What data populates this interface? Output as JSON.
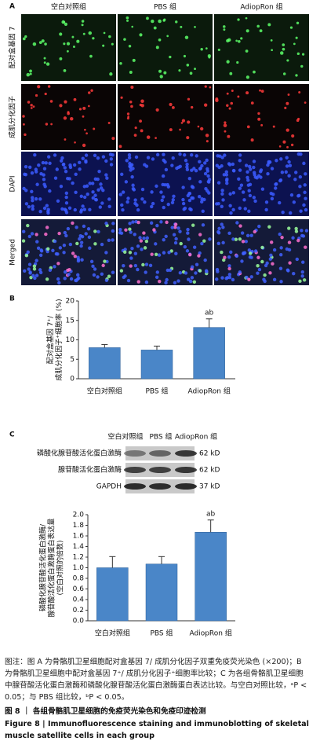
{
  "panel_a": {
    "label": "A",
    "columns": [
      "空白对照组",
      "PBS 组",
      "AdiopRon 组"
    ],
    "rows": [
      "配对盒基因 7",
      "成肌分化因子",
      "DAPI",
      "Merged"
    ]
  },
  "chart_data": [
    {
      "type": "bar",
      "panel_label": "B",
      "ylabel": [
        "配对盒基因 7⁺/",
        "成肌分化因子⁺细胞率 (%)"
      ],
      "categories": [
        "空白对照组",
        "PBS 组",
        "AdiopRon 组"
      ],
      "values": [
        8.0,
        7.4,
        13.2
      ],
      "errors": [
        0.8,
        1.0,
        2.2
      ],
      "significance": [
        null,
        null,
        "ab"
      ],
      "color": "#4a86c8",
      "ylim": [
        0,
        20
      ],
      "yticks": [
        0,
        5,
        10,
        15,
        20
      ]
    },
    {
      "type": "bar",
      "ylabel": [
        "磷酸化腺苷酸活化蛋白激酶/",
        "腺苷酸活化蛋白激酶蛋白表达量",
        "(空白对照的倍数)"
      ],
      "categories": [
        "空白对照组",
        "PBS 组",
        "AdiopRon 组"
      ],
      "values": [
        1.0,
        1.07,
        1.67
      ],
      "errors": [
        0.21,
        0.14,
        0.23
      ],
      "significance": [
        null,
        null,
        "ab"
      ],
      "color": "#4a86c8",
      "ylim": [
        0,
        2
      ],
      "yticks": [
        {
          "value": 0,
          "label": "0.0"
        },
        0.2,
        0.4,
        0.6,
        0.8,
        {
          "value": 1,
          "label": "1.0"
        },
        1.2,
        1.4,
        1.6,
        1.8,
        {
          "value": 2,
          "label": "2.0"
        }
      ]
    }
  ],
  "blot": {
    "label": "C",
    "columns": [
      "空白对照组",
      "PBS 组",
      "AdiopRon 组"
    ],
    "rows": [
      {
        "name": "磷酸化腺苷酸活化蛋白激酶",
        "size": "62 kD"
      },
      {
        "name": "腺苷酸活化蛋白激酶",
        "size": "62 kD"
      },
      {
        "name": "GAPDH",
        "size": "37 kD"
      }
    ]
  },
  "caption": "图注：图 A 为骨骼肌卫星细胞配对盒基因 7/ 成肌分化因子双重免疫荧光染色 (×200)；B 为骨骼肌卫星细胞中配对盒基因 7⁺/ 成肌分化因子⁺细胞率比较；C 为各组骨骼肌卫星细胞中腺苷酸活化蛋白激酶和磷酸化腺苷酸活化蛋白激酶蛋白表达比较。与空白对照比较，ᵃP < 0.05；与 PBS 组比较，ᵇP < 0.05。",
  "figure_title": {
    "zh": "图 8 ｜ 各组骨骼肌卫星细胞的免疫荧光染色和免疫印迹检测",
    "en": "Figure 8 | Immunofluorescence staining and immunoblotting of skeletal muscle satellite cells in each group"
  }
}
